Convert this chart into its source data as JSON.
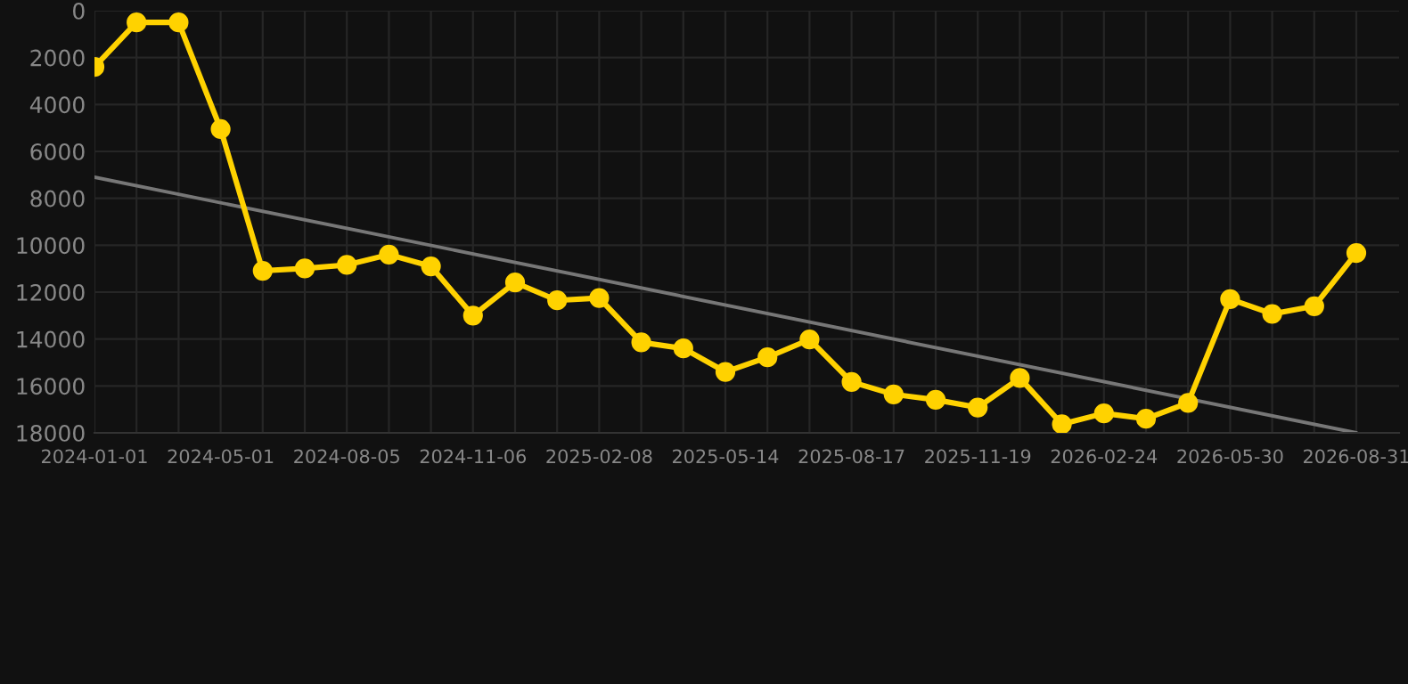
{
  "chart_data": {
    "type": "line",
    "categories": [
      "2024-01-01",
      null,
      null,
      "2024-05-01",
      null,
      null,
      "2024-08-05",
      null,
      null,
      "2024-11-06",
      null,
      null,
      "2025-02-08",
      null,
      null,
      "2025-05-14",
      null,
      null,
      "2025-08-17",
      null,
      null,
      "2025-11-19",
      null,
      null,
      "2026-02-24",
      null,
      null,
      "2026-05-30",
      null,
      null,
      "2026-08-31"
    ],
    "series": [
      {
        "color": "#ffd200",
        "marker": "circle",
        "values": [
          2400,
          500,
          500,
          5050,
          11090,
          10990,
          10840,
          10400,
          10900,
          13000,
          11590,
          12350,
          12250,
          14140,
          14400,
          15400,
          14780,
          14020,
          15830,
          16360,
          16590,
          16920,
          15660,
          17630,
          17170,
          17400,
          16720,
          12300,
          12930,
          12600,
          10330
        ]
      },
      {
        "color": "#777777",
        "marker": "none",
        "values": [
          7100,
          null,
          null,
          null,
          null,
          null,
          null,
          null,
          null,
          null,
          null,
          null,
          null,
          null,
          null,
          null,
          null,
          null,
          null,
          null,
          null,
          null,
          null,
          null,
          null,
          null,
          null,
          null,
          null,
          null,
          18000
        ]
      }
    ],
    "ylim": [
      18000,
      0
    ],
    "yticks": [
      0,
      2000,
      4000,
      6000,
      8000,
      10000,
      12000,
      14000,
      16000,
      18000
    ],
    "grid": true
  }
}
